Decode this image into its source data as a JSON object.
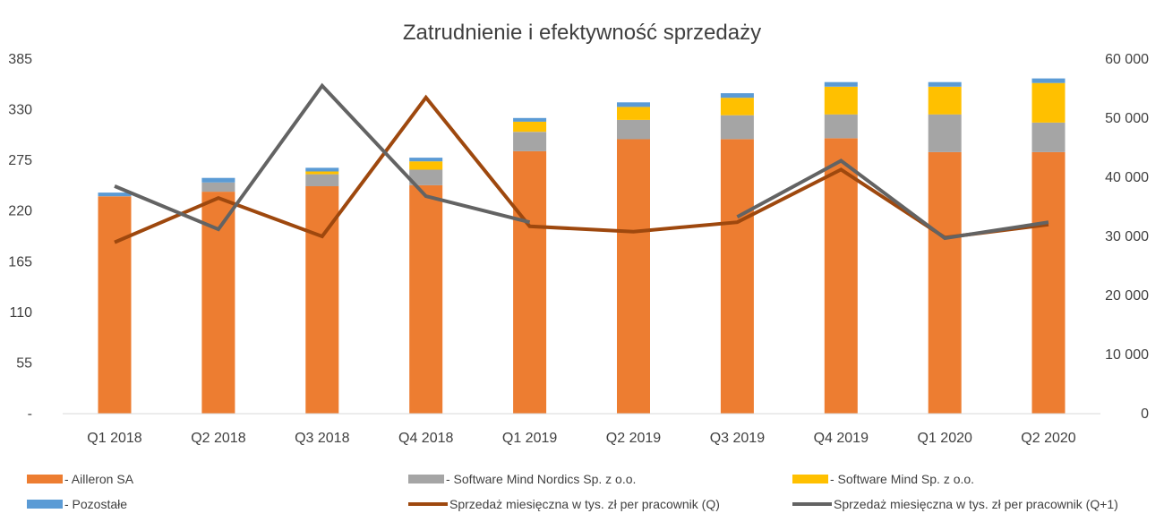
{
  "chart_data": {
    "type": "bar",
    "title": "Zatrudnienie i efektywność sprzedaży",
    "categories": [
      "Q1 2018",
      "Q2 2018",
      "Q3 2018",
      "Q4 2018",
      "Q1 2019",
      "Q2 2019",
      "Q3 2019",
      "Q4 2019",
      "Q1 2020",
      "Q2 2020"
    ],
    "left_axis": {
      "ylim": [
        0,
        385
      ],
      "tick_values": [
        0,
        55,
        110,
        165,
        220,
        275,
        330,
        385
      ],
      "tick_labels": [
        "-",
        "55",
        "110",
        "165",
        "220",
        "275",
        "330",
        "385"
      ]
    },
    "right_axis": {
      "ylim": [
        0,
        60000
      ],
      "tick_values": [
        0,
        10000,
        20000,
        30000,
        40000,
        50000,
        60000
      ],
      "tick_labels": [
        "0",
        "10 000",
        "20 000",
        "30 000",
        "40 000",
        "50 000",
        "60 000"
      ]
    },
    "stacked_series": [
      {
        "name": "- Ailleron SA",
        "color": "#ED7D31",
        "values": [
          236,
          241,
          247,
          248,
          285,
          298,
          298,
          299,
          284,
          284
        ]
      },
      {
        "name": "- Software Mind Nordics Sp. z o.o.",
        "color": "#A5A5A5",
        "values": [
          0,
          10,
          13,
          17,
          21,
          21,
          26,
          26,
          41,
          32
        ]
      },
      {
        "name": "- Software Mind Sp. z o.o.",
        "color": "#FFC000",
        "values": [
          0,
          0,
          3,
          9,
          11,
          14,
          19,
          30,
          30,
          43
        ]
      },
      {
        "name": "- Pozostałe",
        "color": "#5B9BD5",
        "values": [
          4,
          5,
          4,
          4,
          4,
          5,
          5,
          5,
          5,
          5
        ]
      }
    ],
    "line_series": [
      {
        "name": "Sprzedaż miesięczna w tys. zł per pracownik (Q)",
        "color": "#9E480E",
        "axis": "right",
        "values": [
          29000,
          36500,
          30000,
          53500,
          31700,
          30800,
          32400,
          41300,
          29800,
          32000
        ]
      },
      {
        "name": "Sprzedaż miesięczna w tys. zł per pracownik (Q+1)",
        "color": "#636363",
        "axis": "right",
        "values": [
          38500,
          31200,
          55500,
          36800,
          32400,
          null,
          33300,
          42800,
          29700,
          32400
        ]
      }
    ],
    "legend_position": "bottom",
    "grid": false
  }
}
